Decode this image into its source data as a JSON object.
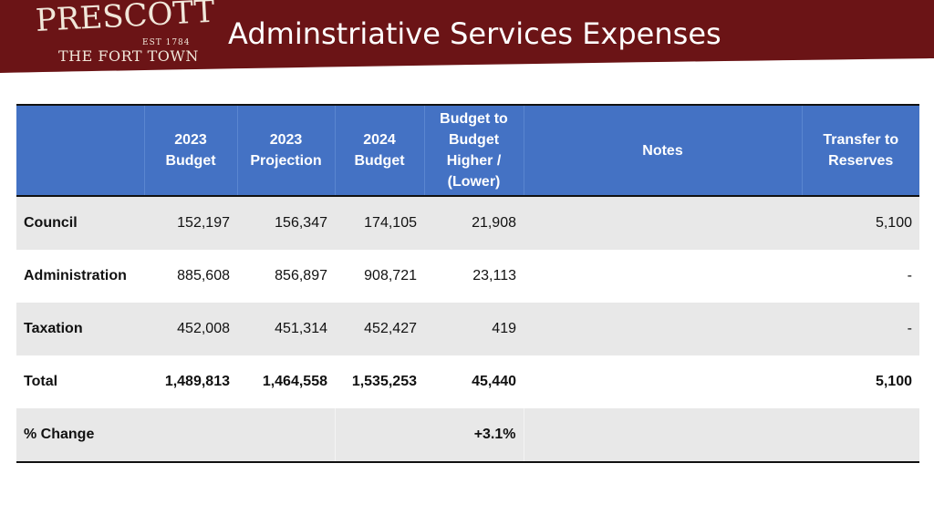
{
  "header": {
    "logo": {
      "name": "PRESCOTT",
      "est": "EST 1784",
      "tagline": "THE FORT TOWN"
    },
    "title": "Adminstriative Services Expenses"
  },
  "colors": {
    "header_band": "#6b1416",
    "table_header": "#4472c4",
    "row_shade": "#e8e8e8"
  },
  "table": {
    "columns": [
      "",
      "2023\nBudget",
      "2023\nProjection",
      "2024\nBudget",
      "Budget to\nBudget\nHigher /\n(Lower)",
      "Notes",
      "Transfer to\nReserves"
    ],
    "rows": [
      {
        "label": "Council",
        "b2023": "152,197",
        "p2023": "156,347",
        "b2024": "174,105",
        "diff": "21,908",
        "notes": "",
        "reserves": "5,100"
      },
      {
        "label": "Administration",
        "b2023": "885,608",
        "p2023": "856,897",
        "b2024": "908,721",
        "diff": "23,113",
        "notes": "",
        "reserves": "-"
      },
      {
        "label": "Taxation",
        "b2023": "452,008",
        "p2023": "451,314",
        "b2024": "452,427",
        "diff": "419",
        "notes": "",
        "reserves": "-"
      }
    ],
    "total": {
      "label": "Total",
      "b2023": "1,489,813",
      "p2023": "1,464,558",
      "b2024": "1,535,253",
      "diff": "45,440",
      "notes": "",
      "reserves": "5,100"
    },
    "change": {
      "label": "% Change",
      "diff": "+3.1%"
    }
  }
}
